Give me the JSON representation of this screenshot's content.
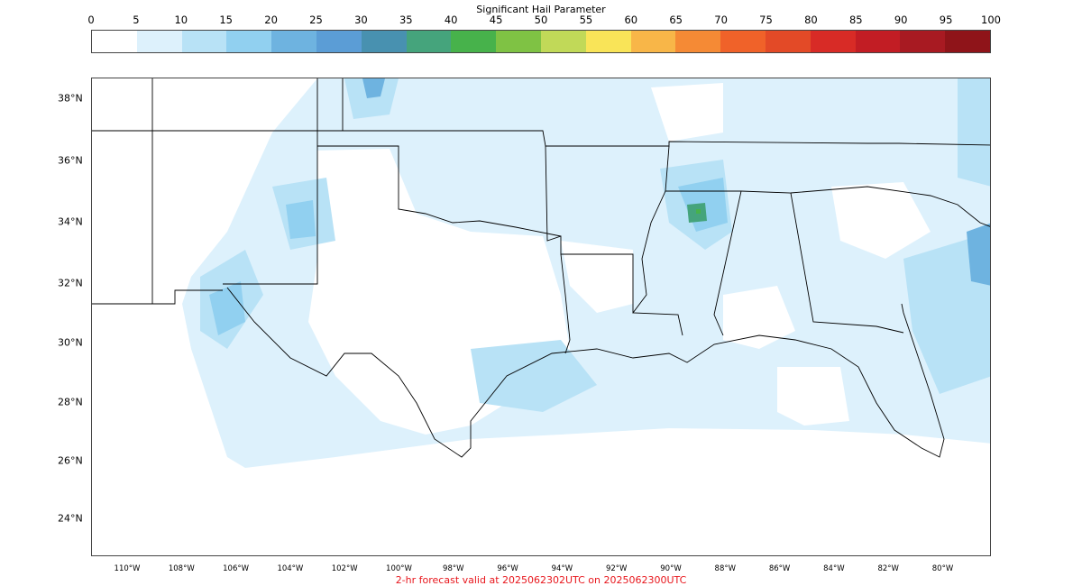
{
  "colorbar": {
    "title": "Significant Hail Parameter",
    "ticks": [
      "0",
      "5",
      "10",
      "15",
      "20",
      "25",
      "30",
      "35",
      "40",
      "45",
      "50",
      "55",
      "60",
      "65",
      "70",
      "75",
      "80",
      "85",
      "90",
      "95",
      "100"
    ],
    "colors": [
      "#ffffff",
      "#ddf1fc",
      "#b8e2f6",
      "#91d0f0",
      "#6eb3e0",
      "#5b9dd6",
      "#4891b0",
      "#45a47c",
      "#47b24b",
      "#7fc244",
      "#c1d958",
      "#f9e458",
      "#f8b648",
      "#f58a35",
      "#f06229",
      "#e34a27",
      "#d82b26",
      "#c21d24",
      "#a81a22",
      "#8f1419"
    ]
  },
  "map": {
    "lat_labels": [
      "38°N",
      "36°N",
      "34°N",
      "32°N",
      "30°N",
      "28°N",
      "26°N",
      "24°N"
    ],
    "lon_labels": [
      "110°W",
      "108°W",
      "106°W",
      "104°W",
      "102°W",
      "100°W",
      "98°W",
      "96°W",
      "94°W",
      "92°W",
      "90°W",
      "88°W",
      "86°W",
      "84°W",
      "82°W",
      "80°W"
    ]
  },
  "footer": {
    "text": "2-hr forecast valid at 2025062302UTC on 2025062300UTC"
  }
}
